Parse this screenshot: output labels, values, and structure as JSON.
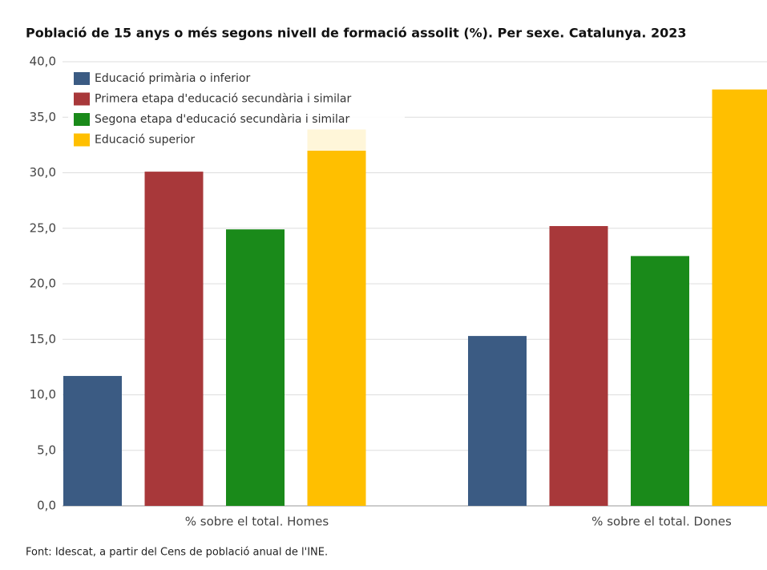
{
  "chart_data": {
    "type": "bar",
    "title": "Població de 15 anys o més segons nivell de formació assolit (%). Per sexe. Catalunya. 2023",
    "categories": [
      "% sobre el total. Homes",
      "% sobre el total. Dones"
    ],
    "series": [
      {
        "name": "Educació primària o inferior",
        "color": "#3b5b83",
        "values": [
          11.7,
          15.3
        ]
      },
      {
        "name": "Primera etapa d'educació secundària i similar",
        "color": "#a8383a",
        "values": [
          30.1,
          25.2
        ]
      },
      {
        "name": "Segona etapa d'educació secundària i similar",
        "color": "#1a8a1a",
        "values": [
          24.9,
          22.5
        ]
      },
      {
        "name": "Educació superior",
        "color": "#ffbf00",
        "values": [
          33.9,
          37.5
        ]
      }
    ],
    "ylim": [
      0,
      40
    ],
    "yticks": [
      {
        "value": 0,
        "label": "0,0"
      },
      {
        "value": 5,
        "label": "5,0"
      },
      {
        "value": 10,
        "label": "10,0"
      },
      {
        "value": 15,
        "label": "15,0"
      },
      {
        "value": 20,
        "label": "20,0"
      },
      {
        "value": 25,
        "label": "25,0"
      },
      {
        "value": 30,
        "label": "30,0"
      },
      {
        "value": 35,
        "label": "35,0"
      },
      {
        "value": 40,
        "label": "40,0"
      }
    ],
    "grid": true,
    "legend": "top-left",
    "source": "Font: Idescat, a partir del Cens de població anual de l'INE."
  }
}
